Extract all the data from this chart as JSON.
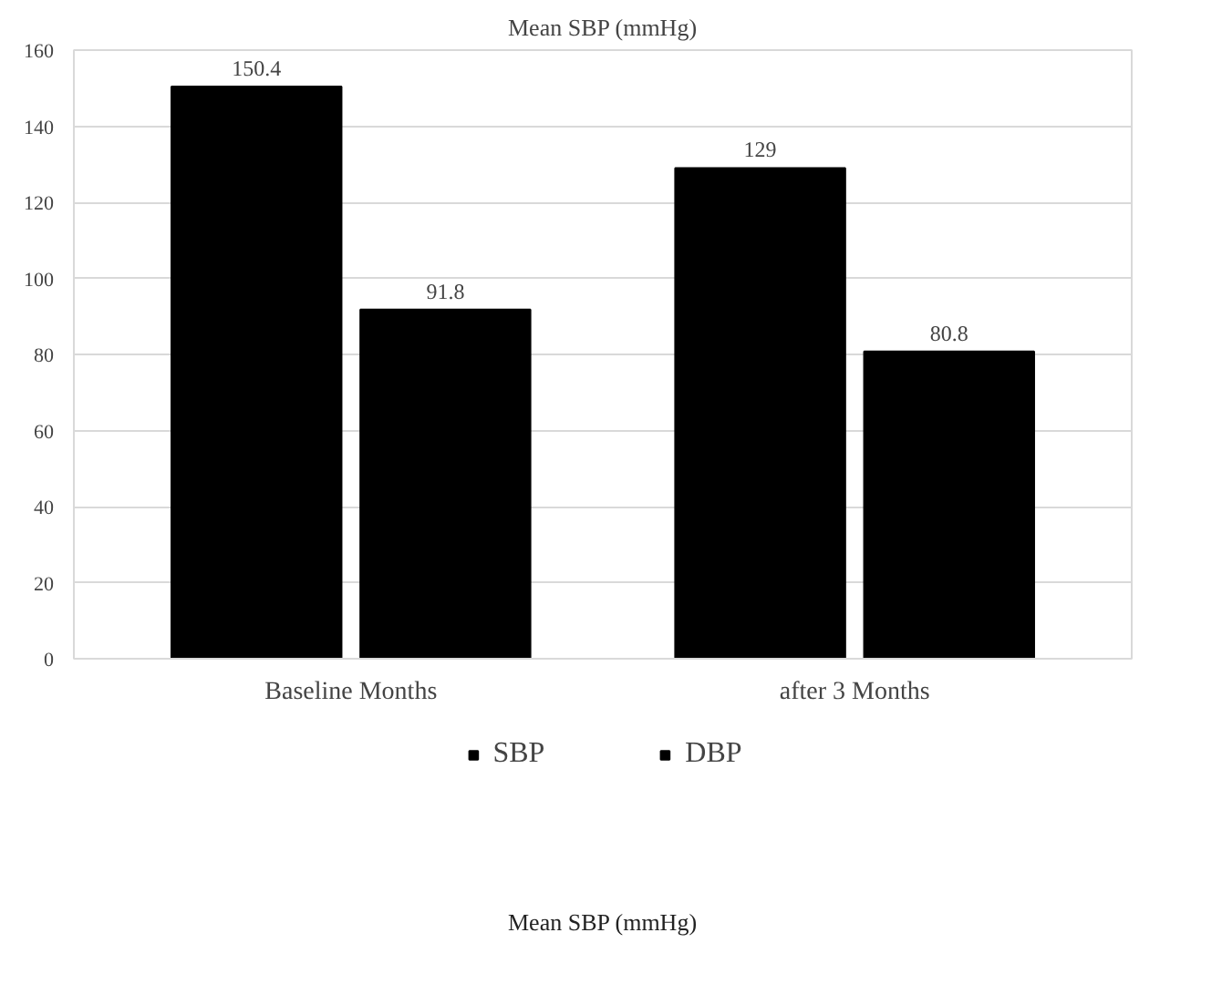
{
  "chart_data": {
    "type": "bar",
    "title": "Mean SBP (mmHg)",
    "categories": [
      "Baseline Months",
      "after 3 Months"
    ],
    "series": [
      {
        "name": "SBP",
        "color": "#000000",
        "values": [
          150.4,
          129
        ]
      },
      {
        "name": "DBP",
        "color": "#000000",
        "values": [
          91.8,
          80.8
        ]
      }
    ],
    "ylim": [
      0,
      160
    ],
    "yticks": [
      0,
      20,
      40,
      60,
      80,
      100,
      120,
      140,
      160
    ],
    "grid": "y",
    "legend": "bottom",
    "data_labels": true,
    "annotations": [
      "Mean SBP (mmHg)"
    ]
  }
}
